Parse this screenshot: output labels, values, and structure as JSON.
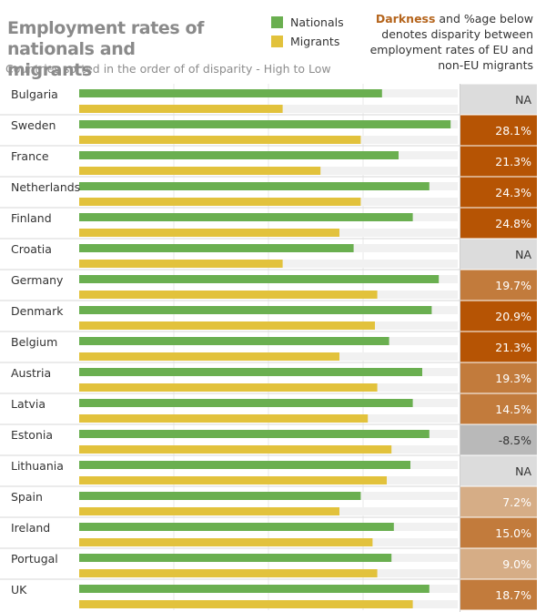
{
  "header": {
    "title": "Employment rates of nationals and migrants",
    "subtitle": "Countries sorted in the order of of disparity - High to Low",
    "note_highlight": "Darkness",
    "note_rest": " and %age below denotes disparity between employment rates of EU and non-EU migrants"
  },
  "colors": {
    "nationals": "#6aaf50",
    "migrants": "#e2c23c",
    "band": "#f1f1f1",
    "na_fill": "#dcdcdc",
    "neg_fill": "#b9b9b9",
    "dark_fill": "#b65404",
    "mid_fill": "#c27b3c",
    "light_fill": "#d6ad86"
  },
  "chart_data": {
    "type": "bar",
    "title": "Employment rates of nationals and migrants",
    "subtitle": "Countries sorted in the order of of disparity - High to Low",
    "orientation": "horizontal",
    "categories": [
      "Bulgaria",
      "Sweden",
      "France",
      "Netherlands",
      "Finland",
      "Croatia",
      "Germany",
      "Denmark",
      "Belgium",
      "Austria",
      "Latvia",
      "Estonia",
      "Lithuania",
      "Spain",
      "Ireland",
      "Portugal",
      "UK"
    ],
    "series": [
      {
        "name": "Nationals",
        "values": [
          64,
          78.5,
          67.5,
          74,
          70.5,
          58,
          76,
          74.5,
          65.5,
          72.5,
          70.5,
          74,
          70,
          59.5,
          66.5,
          66,
          74
        ]
      },
      {
        "name": "Migrants",
        "values": [
          43,
          59.5,
          51,
          59.5,
          55,
          43,
          63,
          62.5,
          55,
          63,
          61,
          66,
          65,
          55,
          62,
          63,
          70.5
        ]
      }
    ],
    "disparity_labels": [
      "NA",
      "28.1%",
      "21.3%",
      "24.3%",
      "24.8%",
      "NA",
      "19.7%",
      "20.9%",
      "21.3%",
      "19.3%",
      "14.5%",
      "-8.5%",
      "NA",
      "7.2%",
      "15.0%",
      "9.0%",
      "18.7%"
    ],
    "disparity_values": [
      null,
      28.1,
      21.3,
      24.3,
      24.8,
      null,
      19.7,
      20.9,
      21.3,
      19.3,
      14.5,
      -8.5,
      null,
      7.2,
      15.0,
      9.0,
      18.7
    ],
    "xlim": [
      0,
      80
    ],
    "xlabel": "",
    "ylabel": "",
    "grid": true,
    "legend": [
      "Nationals",
      "Migrants"
    ]
  }
}
